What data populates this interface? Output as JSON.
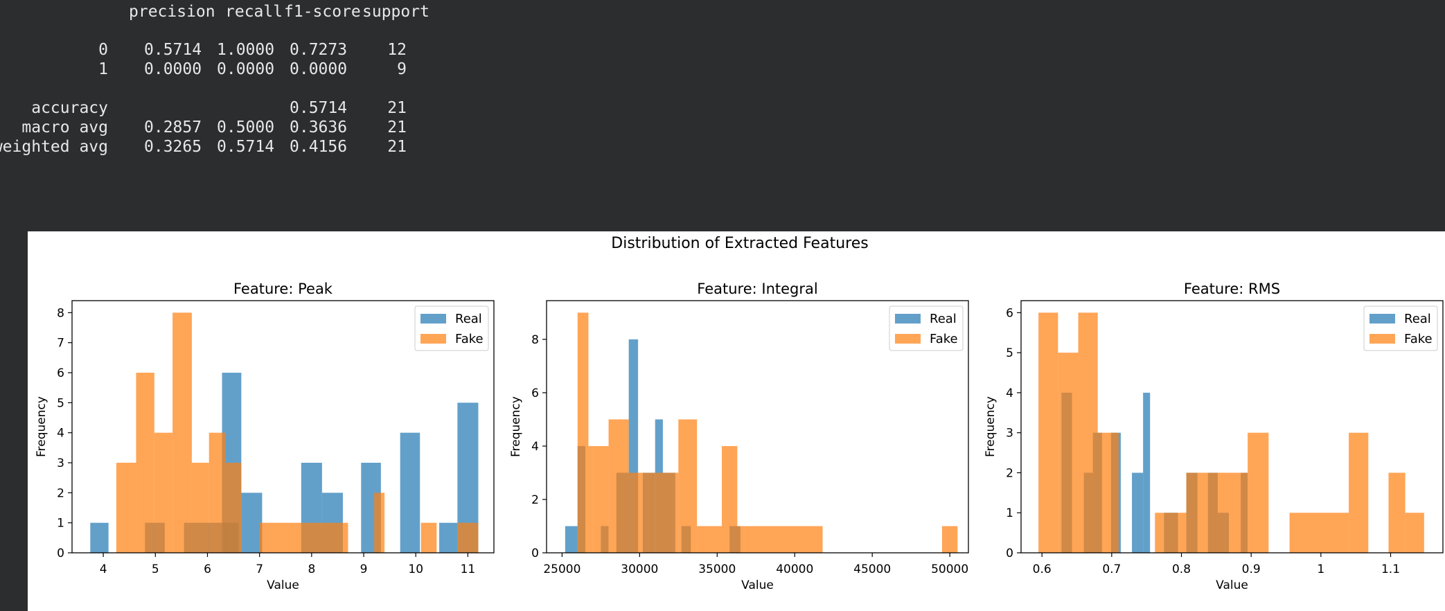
{
  "report": {
    "header": {
      "precision": "precision",
      "recall": "recall",
      "f1": "f1-score",
      "support": "support"
    },
    "rows": [
      {
        "label": "0",
        "precision": "0.5714",
        "recall": "1.0000",
        "f1": "0.7273",
        "support": "12"
      },
      {
        "label": "1",
        "precision": "0.0000",
        "recall": "0.0000",
        "f1": "0.0000",
        "support": "9"
      },
      {
        "label": "accuracy",
        "precision": "",
        "recall": "",
        "f1": "0.5714",
        "support": "21"
      },
      {
        "label": "macro avg",
        "precision": "0.2857",
        "recall": "0.5000",
        "f1": "0.3636",
        "support": "21"
      },
      {
        "label": "weighted avg",
        "precision": "0.3265",
        "recall": "0.5714",
        "f1": "0.4156",
        "support": "21"
      }
    ]
  },
  "figure": {
    "suptitle": "Distribution of Extracted Features",
    "colors": {
      "Real": "#1f77b4",
      "Fake": "#ff7f0e",
      "Real_alpha": 0.7,
      "Fake_alpha": 0.7
    }
  },
  "chart_data": [
    {
      "type": "bar",
      "title": "Feature: Peak",
      "xlabel": "Value",
      "ylabel": "Frequency",
      "xlim": [
        3.4,
        11.5
      ],
      "ylim": [
        0,
        8.4
      ],
      "xticks": [
        4,
        5,
        6,
        7,
        8,
        9,
        10,
        11
      ],
      "yticks": [
        0,
        1,
        2,
        3,
        4,
        5,
        6,
        7,
        8
      ],
      "legend": {
        "position": "top-right",
        "entries": [
          "Real",
          "Fake"
        ]
      },
      "series": [
        {
          "name": "Real",
          "bins": [
            [
              3.75,
              4.1,
              1
            ],
            [
              4.8,
              5.18,
              1
            ],
            [
              5.55,
              6.6,
              1
            ],
            [
              6.28,
              6.65,
              6
            ],
            [
              6.65,
              7.05,
              2
            ],
            [
              7.8,
              8.2,
              3
            ],
            [
              8.2,
              8.6,
              2
            ],
            [
              8.95,
              9.33,
              3
            ],
            [
              9.7,
              10.08,
              4
            ],
            [
              10.45,
              10.8,
              1
            ],
            [
              10.8,
              11.2,
              5
            ]
          ]
        },
        {
          "name": "Fake",
          "bins": [
            [
              4.25,
              4.63,
              3
            ],
            [
              4.63,
              4.98,
              6
            ],
            [
              4.98,
              5.33,
              4
            ],
            [
              5.33,
              5.7,
              8
            ],
            [
              5.7,
              6.03,
              3
            ],
            [
              6.03,
              6.35,
              4
            ],
            [
              6.35,
              6.65,
              3
            ],
            [
              7.0,
              7.8,
              1
            ],
            [
              7.8,
              8.6,
              1
            ],
            [
              8.6,
              8.7,
              1
            ],
            [
              9.2,
              9.4,
              2
            ],
            [
              10.1,
              10.4,
              1
            ],
            [
              10.8,
              11.2,
              1
            ]
          ]
        }
      ]
    },
    {
      "type": "bar",
      "title": "Feature: Integral",
      "xlabel": "Value",
      "ylabel": "Frequency",
      "xlim": [
        24000,
        51200
      ],
      "ylim": [
        0,
        9.45
      ],
      "xticks": [
        25000,
        30000,
        35000,
        40000,
        45000,
        50000
      ],
      "yticks": [
        0,
        2,
        4,
        6,
        8
      ],
      "legend": {
        "position": "top-right",
        "entries": [
          "Real",
          "Fake"
        ]
      },
      "series": [
        {
          "name": "Real",
          "bins": [
            [
              25200,
              26000,
              1
            ],
            [
              26000,
              26500,
              4
            ],
            [
              27500,
              28000,
              1
            ],
            [
              28500,
              29300,
              3
            ],
            [
              29300,
              29900,
              8
            ],
            [
              30200,
              31000,
              3
            ],
            [
              31000,
              31500,
              5
            ],
            [
              31500,
              32300,
              3
            ],
            [
              32700,
              33300,
              1
            ],
            [
              35800,
              36500,
              1
            ]
          ]
        },
        {
          "name": "Fake",
          "bins": [
            [
              26000,
              26700,
              9
            ],
            [
              26700,
              27000,
              4
            ],
            [
              27000,
              28000,
              4
            ],
            [
              28000,
              29300,
              5
            ],
            [
              29300,
              30200,
              3
            ],
            [
              30200,
              30800,
              3
            ],
            [
              30800,
              32500,
              3
            ],
            [
              32500,
              33700,
              5
            ],
            [
              33700,
              35300,
              1
            ],
            [
              35300,
              36300,
              4
            ],
            [
              36300,
              36800,
              1
            ],
            [
              36800,
              41800,
              1
            ],
            [
              49500,
              50500,
              1
            ]
          ]
        }
      ]
    },
    {
      "type": "bar",
      "title": "Feature: RMS",
      "xlabel": "Value",
      "ylabel": "Frequency",
      "xlim": [
        0.57,
        1.175
      ],
      "ylim": [
        0,
        6.3
      ],
      "xticks": [
        0.6,
        0.7,
        0.8,
        0.9,
        1.0,
        1.1
      ],
      "yticks": [
        0,
        1,
        2,
        3,
        4,
        5,
        6
      ],
      "legend": {
        "position": "top-right",
        "entries": [
          "Real",
          "Fake"
        ]
      },
      "series": [
        {
          "name": "Real",
          "bins": [
            [
              0.628,
              0.643,
              4
            ],
            [
              0.66,
              0.673,
              2
            ],
            [
              0.673,
              0.686,
              3
            ],
            [
              0.699,
              0.713,
              3
            ],
            [
              0.729,
              0.745,
              2
            ],
            [
              0.745,
              0.755,
              4
            ],
            [
              0.775,
              0.795,
              1
            ],
            [
              0.807,
              0.823,
              2
            ],
            [
              0.838,
              0.852,
              2
            ],
            [
              0.852,
              0.868,
              1
            ],
            [
              0.885,
              0.895,
              2
            ]
          ]
        },
        {
          "name": "Fake",
          "bins": [
            [
              0.595,
              0.623,
              6
            ],
            [
              0.623,
              0.652,
              5
            ],
            [
              0.652,
              0.68,
              6
            ],
            [
              0.68,
              0.71,
              3
            ],
            [
              0.762,
              0.807,
              1
            ],
            [
              0.807,
              0.895,
              2
            ],
            [
              0.895,
              0.925,
              3
            ],
            [
              0.955,
              1.04,
              1
            ],
            [
              1.04,
              1.068,
              3
            ],
            [
              1.097,
              1.121,
              2
            ],
            [
              1.121,
              1.148,
              1
            ]
          ]
        }
      ]
    }
  ]
}
